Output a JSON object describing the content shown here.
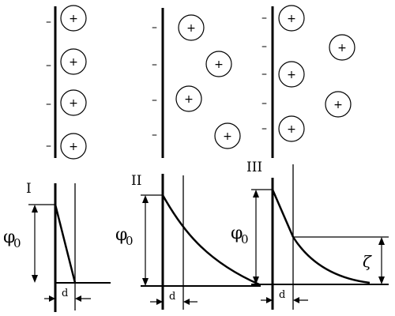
{
  "labels": {
    "plus": "+",
    "minus": "–",
    "panel_1": "I",
    "panel_2": "II",
    "panel_3": "III",
    "phi": "φ",
    "phi_sub": "0",
    "thickness": "d",
    "zeta": "ζ"
  }
}
